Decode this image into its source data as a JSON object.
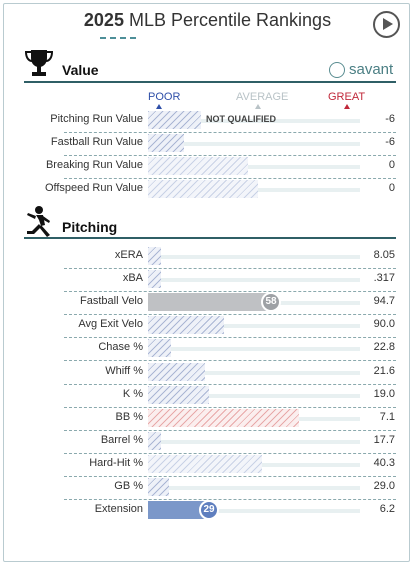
{
  "header": {
    "year": "2025",
    "title": "MLB Percentile Rankings"
  },
  "value_section": {
    "title": "Value",
    "brand": "savant",
    "scale": {
      "poor": "POOR",
      "average": "AVERAGE",
      "great": "GREAT"
    },
    "colors": {
      "poor": "#2f4fa8",
      "average": "#b9c3c7",
      "great": "#c0283a"
    },
    "rows": [
      {
        "metric": "Pitching Run Value",
        "value": "-6",
        "note": "NOT QUALIFIED",
        "percentile": 25,
        "style": "hatch-blue"
      },
      {
        "metric": "Fastball Run Value",
        "value": "-6",
        "percentile": 17,
        "style": "hatch-blue"
      },
      {
        "metric": "Breaking Run Value",
        "value": "0",
        "percentile": 47,
        "style": "hatch-light"
      },
      {
        "metric": "Offspeed Run Value",
        "value": "0",
        "percentile": 52,
        "style": "hatch-light"
      }
    ]
  },
  "pitching_section": {
    "title": "Pitching",
    "rows": [
      {
        "metric": "xERA",
        "value": "8.05",
        "percentile": 6,
        "style": "hatch-blue"
      },
      {
        "metric": "xBA",
        "value": ".317",
        "percentile": 6,
        "style": "hatch-blue"
      },
      {
        "metric": "Fastball Velo",
        "value": "94.7",
        "percentile": 58,
        "badge": "58",
        "style": "solid-gray"
      },
      {
        "metric": "Avg Exit Velo",
        "value": "90.0",
        "percentile": 36,
        "style": "hatch-blue"
      },
      {
        "metric": "Chase %",
        "value": "22.8",
        "percentile": 11,
        "style": "hatch-blue"
      },
      {
        "metric": "Whiff %",
        "value": "21.6",
        "percentile": 27,
        "style": "hatch-blue"
      },
      {
        "metric": "K %",
        "value": "19.0",
        "percentile": 29,
        "style": "hatch-blue"
      },
      {
        "metric": "BB %",
        "value": "7.1",
        "percentile": 71,
        "style": "hatch-red"
      },
      {
        "metric": "Barrel %",
        "value": "17.7",
        "percentile": 6,
        "style": "hatch-blue"
      },
      {
        "metric": "Hard-Hit %",
        "value": "40.3",
        "percentile": 54,
        "style": "hatch-light"
      },
      {
        "metric": "GB %",
        "value": "29.0",
        "percentile": 10,
        "style": "hatch-blue"
      },
      {
        "metric": "Extension",
        "value": "6.2",
        "percentile": 29,
        "badge": "29",
        "style": "solid-blue"
      }
    ]
  }
}
